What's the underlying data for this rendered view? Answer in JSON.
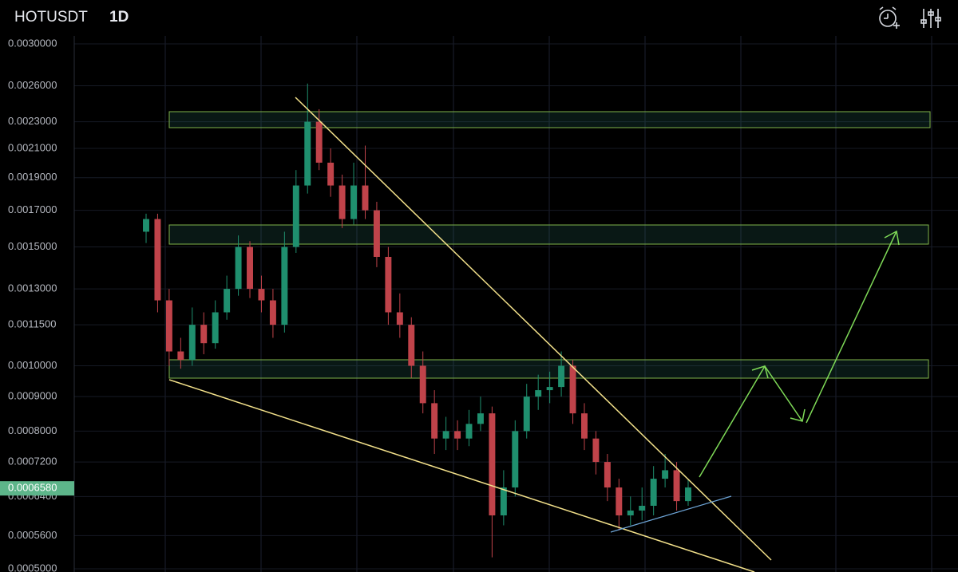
{
  "chart_data": {
    "type": "candlestick",
    "title": "HOTUSDT",
    "interval": "1D",
    "log_scale": true,
    "grid": true,
    "up_color": "#1f8f6e",
    "down_color": "#c0434a",
    "ylim": [
      0.0005,
      0.003
    ],
    "yticks": [
      {
        "value": 0.003,
        "label": "0.0030000"
      },
      {
        "value": 0.0026,
        "label": "0.0026000"
      },
      {
        "value": 0.0023,
        "label": "0.0023000"
      },
      {
        "value": 0.0021,
        "label": "0.0021000"
      },
      {
        "value": 0.0019,
        "label": "0.0019000"
      },
      {
        "value": 0.0017,
        "label": "0.0017000"
      },
      {
        "value": 0.0015,
        "label": "0.0015000"
      },
      {
        "value": 0.0013,
        "label": "0.0013000"
      },
      {
        "value": 0.00115,
        "label": "0.0011500"
      },
      {
        "value": 0.001,
        "label": "0.0010000"
      },
      {
        "value": 0.0009,
        "label": "0.0009000"
      },
      {
        "value": 0.0008,
        "label": "0.0008000"
      },
      {
        "value": 0.00072,
        "label": "0.0007200"
      },
      {
        "value": 0.00064,
        "label": "0.0006400"
      },
      {
        "value": 0.00056,
        "label": "0.0005600"
      },
      {
        "value": 0.0005,
        "label": "0.0005000"
      }
    ],
    "current_price": {
      "value": 0.000658,
      "label": "0.0006580"
    },
    "categories": [
      null,
      null,
      null,
      null,
      null,
      null,
      null,
      null,
      null,
      null,
      null,
      null,
      null,
      null,
      null,
      null,
      null,
      null,
      null,
      null,
      null,
      null,
      null,
      null,
      null,
      null,
      null,
      null,
      null,
      null,
      null,
      null,
      null,
      null,
      null,
      null,
      null,
      null,
      null,
      null,
      null,
      null,
      null,
      null,
      null,
      null,
      null,
      null
    ],
    "open": [
      0.00158,
      0.00165,
      0.00125,
      0.00105,
      0.00102,
      0.00115,
      0.00108,
      0.0012,
      0.0013,
      0.0015,
      0.0013,
      0.00125,
      0.00115,
      0.0015,
      0.00185,
      0.0023,
      0.002,
      0.00185,
      0.00165,
      0.00185,
      0.0017,
      0.00145,
      0.0012,
      0.00115,
      0.001,
      0.00088,
      0.00078,
      0.0008,
      0.00078,
      0.00082,
      0.00085,
      0.0006,
      0.00066,
      0.0008,
      0.0009,
      0.00092,
      0.00093,
      0.001,
      0.00085,
      0.00078,
      0.00072,
      0.00066,
      0.0006,
      0.00061,
      0.00062,
      0.00068,
      0.0007,
      0.00063
    ],
    "high": [
      0.00168,
      0.00168,
      0.0013,
      0.0011,
      0.00122,
      0.0012,
      0.00125,
      0.00136,
      0.00156,
      0.00153,
      0.00136,
      0.0013,
      0.00158,
      0.00195,
      0.00262,
      0.0024,
      0.0021,
      0.00192,
      0.002,
      0.00212,
      0.00175,
      0.0015,
      0.00128,
      0.00118,
      0.00105,
      0.00092,
      0.00084,
      0.00083,
      0.00086,
      0.0009,
      0.00087,
      0.0007,
      0.00083,
      0.00094,
      0.00097,
      0.00098,
      0.00105,
      0.00102,
      0.00088,
      0.0008,
      0.00074,
      0.00068,
      0.00064,
      0.00066,
      0.00071,
      0.00074,
      0.00072,
      0.00068
    ],
    "low": [
      0.00152,
      0.0012,
      0.001,
      0.00099,
      0.001,
      0.00104,
      0.00106,
      0.00117,
      0.00127,
      0.00126,
      0.0012,
      0.0011,
      0.00112,
      0.00147,
      0.0018,
      0.00195,
      0.00178,
      0.0016,
      0.00162,
      0.00165,
      0.0014,
      0.00115,
      0.0011,
      0.00096,
      0.00085,
      0.00074,
      0.00075,
      0.00075,
      0.00076,
      0.0008,
      0.00052,
      0.00058,
      0.00064,
      0.00078,
      0.00086,
      0.00088,
      0.0009,
      0.00082,
      0.00075,
      0.00069,
      0.00063,
      0.00057,
      0.00058,
      0.00059,
      0.0006,
      0.00066,
      0.00061,
      0.00062
    ],
    "close": [
      0.00165,
      0.00125,
      0.00105,
      0.00102,
      0.00115,
      0.00108,
      0.0012,
      0.0013,
      0.0015,
      0.0013,
      0.00125,
      0.00115,
      0.0015,
      0.00185,
      0.0023,
      0.002,
      0.00185,
      0.00165,
      0.00185,
      0.0017,
      0.00145,
      0.0012,
      0.00115,
      0.001,
      0.00088,
      0.00078,
      0.0008,
      0.00078,
      0.00082,
      0.00085,
      0.0006,
      0.00066,
      0.0008,
      0.0009,
      0.00092,
      0.00093,
      0.001,
      0.00085,
      0.00078,
      0.00072,
      0.00066,
      0.0006,
      0.00061,
      0.00062,
      0.00068,
      0.0007,
      0.00063,
      0.00066
    ]
  }
}
